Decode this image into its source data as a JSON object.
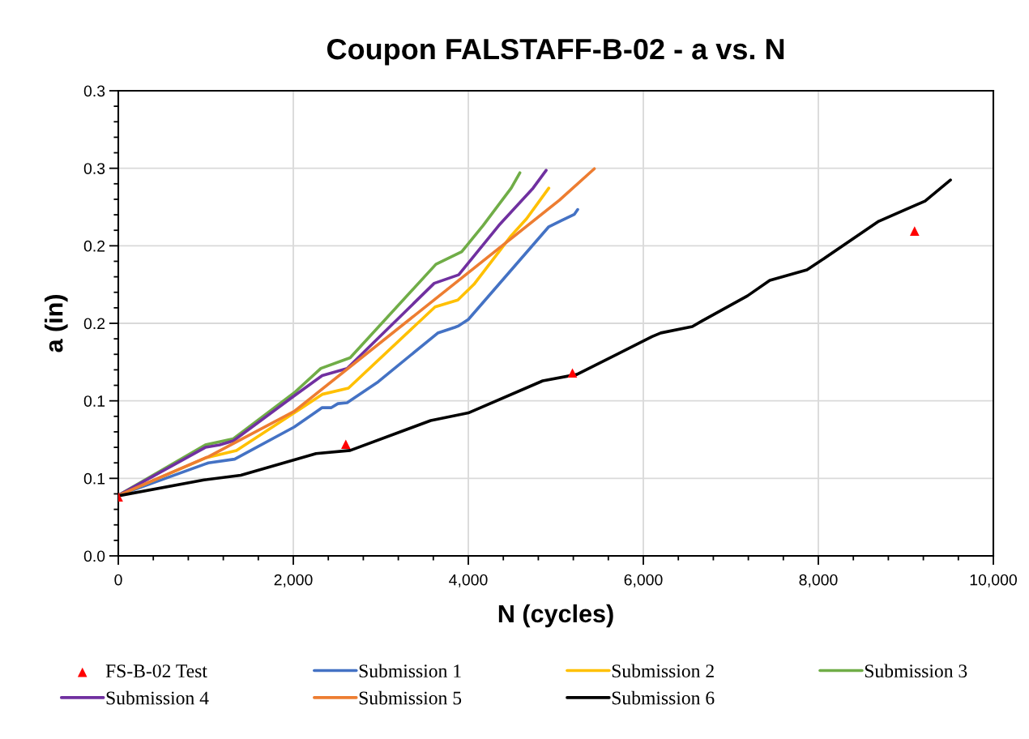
{
  "chart_data": {
    "type": "line",
    "title": "Coupon FALSTAFF-B-02 - a vs. N",
    "xlabel": "N (cycles)",
    "ylabel": "a (in)",
    "xlim": [
      0,
      10000
    ],
    "xticks": [
      {
        "value": 0,
        "label": "0"
      },
      {
        "value": 2000,
        "label": "2,000"
      },
      {
        "value": 4000,
        "label": "4,000"
      },
      {
        "value": 6000,
        "label": "6,000"
      },
      {
        "value": 8000,
        "label": "8,000"
      },
      {
        "value": 10000,
        "label": "10,000"
      }
    ],
    "ylim": [
      0,
      0.3
    ],
    "yticks": [
      {
        "value": 0,
        "label": "0.0"
      },
      {
        "value": 0.05,
        "label": "0.1"
      },
      {
        "value": 0.1,
        "label": "0.1"
      },
      {
        "value": 0.15,
        "label": "0.2"
      },
      {
        "value": 0.2,
        "label": "0.2"
      },
      {
        "value": 0.25,
        "label": "0.3"
      },
      {
        "value": 0.3,
        "label": "0.3"
      }
    ],
    "grid": true,
    "legend": "bottom",
    "series": [
      {
        "name": "FS-B-02 Test",
        "type": "scatter",
        "marker": "triangle",
        "color": "#ff0000",
        "x": [
          0,
          2600,
          5190,
          9100
        ],
        "values": [
          0.038,
          0.072,
          0.118,
          0.2095
        ]
      },
      {
        "name": "Submission 1",
        "color": "#4472c4",
        "x": [
          0,
          1030,
          1330,
          2010,
          2330,
          2435,
          2510,
          2615,
          2970,
          3650,
          3845,
          3890,
          4000,
          4920,
          5065,
          5210,
          5250
        ],
        "values": [
          0.039,
          0.06,
          0.0624,
          0.0831,
          0.0956,
          0.0956,
          0.0982,
          0.0988,
          0.1123,
          0.1437,
          0.1474,
          0.1484,
          0.1525,
          0.2123,
          0.2163,
          0.2202,
          0.2234
        ]
      },
      {
        "name": "Submission 2",
        "color": "#ffc000",
        "x": [
          0,
          1010,
          1350,
          2010,
          2330,
          2630,
          3620,
          3880,
          4065,
          4490,
          4665,
          4920
        ],
        "values": [
          0.039,
          0.0634,
          0.068,
          0.0922,
          0.1042,
          0.1082,
          0.1606,
          0.165,
          0.1752,
          0.2065,
          0.2174,
          0.2372
        ]
      },
      {
        "name": "Submission 3",
        "color": "#70ad47",
        "x": [
          0,
          995,
          1315,
          2010,
          2315,
          2650,
          3630,
          3925,
          4170,
          4490,
          4590
        ],
        "values": [
          0.039,
          0.0716,
          0.0755,
          0.1052,
          0.1209,
          0.1278,
          0.1881,
          0.1962,
          0.2132,
          0.2372,
          0.2471
        ]
      },
      {
        "name": "Submission 4",
        "color": "#7030a0",
        "x": [
          0,
          995,
          1160,
          1315,
          2010,
          2330,
          2615,
          3610,
          3890,
          4350,
          4740,
          4890
        ],
        "values": [
          0.039,
          0.07,
          0.0716,
          0.0742,
          0.1032,
          0.1163,
          0.1209,
          0.1758,
          0.1813,
          0.2132,
          0.2372,
          0.2487
        ]
      },
      {
        "name": "Submission 5",
        "color": "#ed7d31",
        "x": [
          0,
          1030,
          2010,
          5040,
          5440
        ],
        "values": [
          0.039,
          0.064,
          0.0932,
          0.2294,
          0.2497
        ]
      },
      {
        "name": "Submission 6",
        "color": "#000000",
        "x": [
          0,
          980,
          1400,
          2260,
          2650,
          3570,
          4000,
          4850,
          5240,
          6100,
          6200,
          6560,
          6670,
          7190,
          7445,
          7870,
          8010,
          8690,
          9220,
          9510
        ],
        "values": [
          0.0387,
          0.049,
          0.052,
          0.066,
          0.068,
          0.0873,
          0.0922,
          0.1129,
          0.117,
          0.1414,
          0.1438,
          0.1479,
          0.1515,
          0.1677,
          0.1777,
          0.1845,
          0.1897,
          0.2158,
          0.2289,
          0.2424
        ]
      }
    ]
  }
}
